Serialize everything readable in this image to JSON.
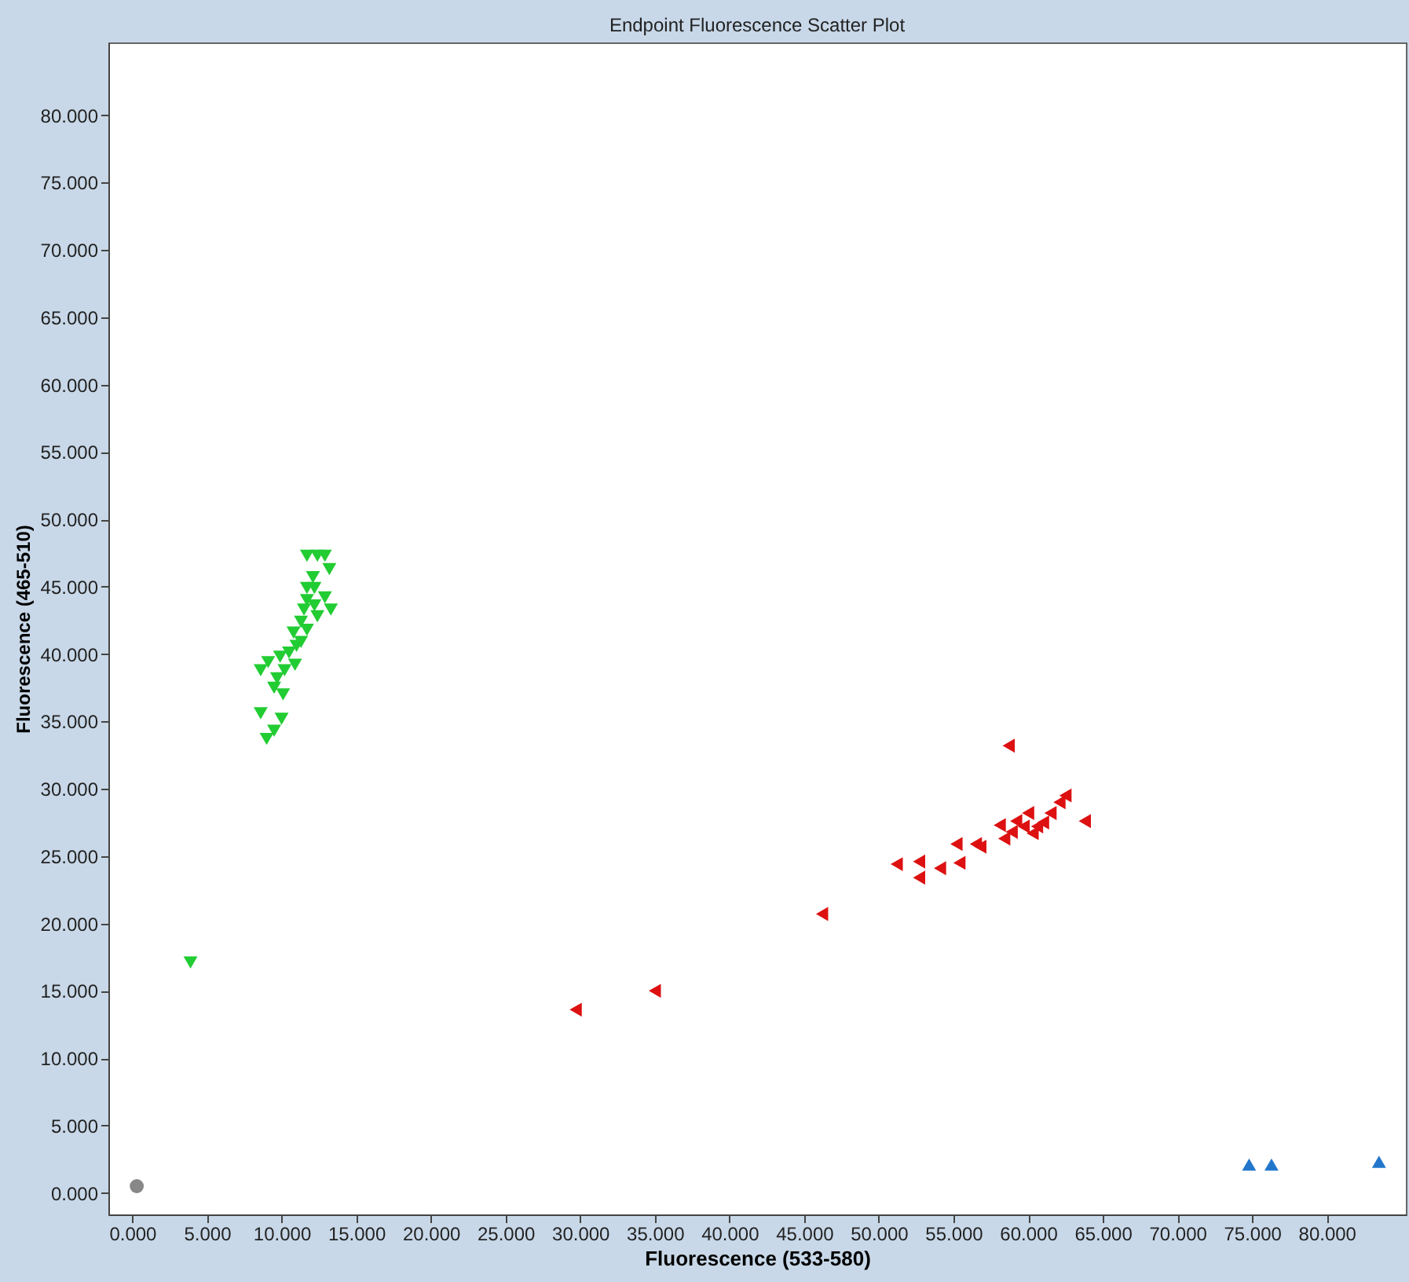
{
  "chart_data": {
    "type": "scatter",
    "title": "Endpoint Fluorescence Scatter Plot",
    "xlabel": "Fluorescence (533-580)",
    "ylabel": "Fluorescence (465-510)",
    "xlim": [
      -1.6,
      85.3
    ],
    "ylim": [
      -1.6,
      85.4
    ],
    "xticks": [
      {
        "value": 0,
        "label": "0.000"
      },
      {
        "value": 5,
        "label": "5.000"
      },
      {
        "value": 10,
        "label": "10.000"
      },
      {
        "value": 15,
        "label": "15.000"
      },
      {
        "value": 20,
        "label": "20.000"
      },
      {
        "value": 25,
        "label": "25.000"
      },
      {
        "value": 30,
        "label": "30.000"
      },
      {
        "value": 35,
        "label": "35.000"
      },
      {
        "value": 40,
        "label": "40.000"
      },
      {
        "value": 45,
        "label": "45.000"
      },
      {
        "value": 50,
        "label": "50.000"
      },
      {
        "value": 55,
        "label": "55.000"
      },
      {
        "value": 60,
        "label": "60.000"
      },
      {
        "value": 65,
        "label": "65.000"
      },
      {
        "value": 70,
        "label": "70.000"
      },
      {
        "value": 75,
        "label": "75.000"
      },
      {
        "value": 80,
        "label": "80.000"
      }
    ],
    "yticks": [
      {
        "value": 0,
        "label": "0.000"
      },
      {
        "value": 5,
        "label": "5.000"
      },
      {
        "value": 10,
        "label": "10.000"
      },
      {
        "value": 15,
        "label": "15.000"
      },
      {
        "value": 20,
        "label": "20.000"
      },
      {
        "value": 25,
        "label": "25.000"
      },
      {
        "value": 30,
        "label": "30.000"
      },
      {
        "value": 35,
        "label": "35.000"
      },
      {
        "value": 40,
        "label": "40.000"
      },
      {
        "value": 45,
        "label": "45.000"
      },
      {
        "value": 50,
        "label": "50.000"
      },
      {
        "value": 55,
        "label": "55.000"
      },
      {
        "value": 60,
        "label": "60.000"
      },
      {
        "value": 65,
        "label": "65.000"
      },
      {
        "value": 70,
        "label": "70.000"
      },
      {
        "value": 75,
        "label": "75.000"
      },
      {
        "value": 80,
        "label": "80.000"
      }
    ],
    "grid": false,
    "series": [
      {
        "color": "#888888",
        "marker": "circle",
        "x": [
          0.3
        ],
        "values": [
          0.5
        ]
      },
      {
        "color": "#22cc33",
        "marker": "triangle-down",
        "x": [
          3.9,
          9.0,
          9.5,
          10.0,
          8.6,
          10.1,
          9.5,
          8.6,
          9.1,
          9.9,
          10.5,
          11.0,
          10.8,
          11.3,
          11.5,
          11.7,
          11.7,
          12.1,
          11.7,
          12.4,
          12.9,
          13.2,
          12.9,
          13.3,
          12.2,
          12.4,
          11.3,
          10.2,
          9.7,
          11.7,
          10.9,
          12.2
        ],
        "values": [
          17.1,
          33.7,
          34.3,
          35.2,
          35.6,
          37.0,
          37.5,
          38.8,
          39.4,
          39.8,
          40.1,
          40.6,
          41.6,
          42.4,
          43.3,
          44.0,
          44.9,
          45.7,
          47.3,
          47.3,
          47.3,
          46.3,
          44.2,
          43.3,
          43.6,
          42.8,
          40.9,
          38.8,
          38.2,
          41.8,
          39.2,
          44.9
        ]
      },
      {
        "color": "#dd1111",
        "marker": "triangle-left",
        "x": [
          29.7,
          35.0,
          46.2,
          51.2,
          52.7,
          52.7,
          54.1,
          55.4,
          55.2,
          56.5,
          56.8,
          58.4,
          58.1,
          58.7,
          59.2,
          59.7,
          60.0,
          60.6,
          61.0,
          61.5,
          62.1,
          62.5,
          63.8,
          58.9,
          60.3
        ],
        "values": [
          13.6,
          15.0,
          20.7,
          24.4,
          24.6,
          23.4,
          24.1,
          24.5,
          25.9,
          25.9,
          25.7,
          26.3,
          27.3,
          33.2,
          27.6,
          27.2,
          28.2,
          27.2,
          27.5,
          28.2,
          29.0,
          29.5,
          27.6,
          26.8,
          26.7
        ]
      },
      {
        "color": "#2277cc",
        "marker": "triangle-up",
        "x": [
          74.8,
          76.3,
          83.5
        ],
        "values": [
          2.1,
          2.1,
          2.3
        ]
      }
    ]
  }
}
